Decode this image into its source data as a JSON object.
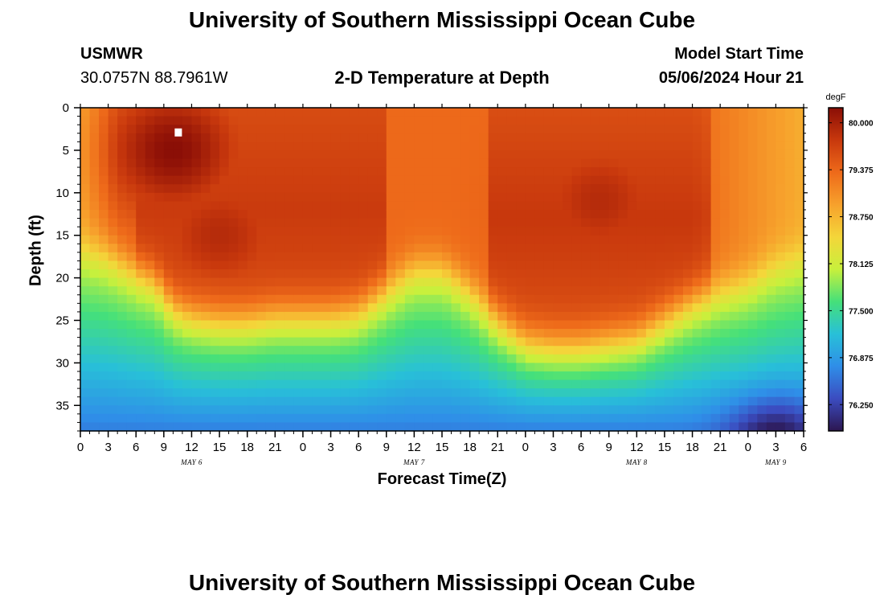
{
  "header": {
    "title": "University of Southern Mississippi Ocean Cube",
    "station": "USMWR",
    "coords": "30.0757N  88.7961W",
    "subtitle": "2-D Temperature at Depth",
    "model_label": "Model Start Time",
    "model_time": "05/06/2024 Hour 21",
    "footer_title": "University of Southern Mississippi Ocean Cube"
  },
  "colors": {
    "scale": [
      "#2c1650",
      "#3b4cc0",
      "#2f8ee8",
      "#28c0d8",
      "#45e07a",
      "#c8f03c",
      "#f4d63a",
      "#f7a12c",
      "#ee6a1a",
      "#c8380d",
      "#8a0e06"
    ]
  },
  "chart_data": {
    "type": "heatmap",
    "title": "2-D Temperature at Depth",
    "xlabel": "Forecast Time(Z)",
    "ylabel": "Depth (ft)",
    "x_hours_range": [
      0,
      78
    ],
    "ylim": [
      0,
      38
    ],
    "y_ticks": [
      0,
      5,
      10,
      15,
      20,
      25,
      30,
      35
    ],
    "x_tick_hours": [
      0,
      3,
      6,
      9,
      12,
      15,
      18,
      21,
      24,
      27,
      30,
      33,
      36,
      39,
      42,
      45,
      48,
      51,
      54,
      57,
      60,
      63,
      66,
      69,
      72,
      75,
      78
    ],
    "x_tick_labels": [
      "0",
      "3",
      "6",
      "9",
      "12",
      "15",
      "18",
      "21",
      "0",
      "3",
      "6",
      "9",
      "12",
      "15",
      "18",
      "21",
      "0",
      "3",
      "6",
      "9",
      "12",
      "15",
      "18",
      "21",
      "0",
      "3",
      "6"
    ],
    "date_labels": [
      {
        "text": "MAY 6",
        "hour": 12
      },
      {
        "text": "MAY 7",
        "hour": 36
      },
      {
        "text": "MAY 8",
        "hour": 60
      },
      {
        "text": "MAY 9",
        "hour": 75
      }
    ],
    "colorbar": {
      "unit": "degF",
      "range": [
        75.9,
        80.2
      ],
      "ticks": [
        "80.000",
        "79.375",
        "78.750",
        "78.125",
        "77.500",
        "76.875",
        "76.250"
      ]
    },
    "thermocline": {
      "hours": [
        0,
        3,
        6,
        8,
        10,
        12,
        15,
        18,
        21,
        24,
        27,
        30,
        33,
        36,
        39,
        42,
        45,
        48,
        51,
        54,
        57,
        60,
        63,
        66,
        69,
        72,
        75,
        78
      ],
      "depth_ft": [
        16,
        17,
        19,
        20,
        23,
        24,
        24.5,
        24.5,
        24,
        24,
        24,
        23.5,
        21,
        18.5,
        18.5,
        21,
        24.5,
        27,
        27.5,
        27.5,
        27,
        26.5,
        24.5,
        22.5,
        21,
        20,
        18,
        17
      ]
    },
    "cold_bottom": {
      "hour": 75,
      "depth_ft": 38,
      "value": 75.9
    },
    "warm_cores": [
      {
        "hour": 10,
        "depth_ft": 5,
        "value": 80.2
      },
      {
        "hour": 15,
        "depth_ft": 15,
        "value": 79.9
      },
      {
        "hour": 56,
        "depth_ft": 11,
        "value": 79.9
      }
    ],
    "marker": {
      "hour": 10,
      "depth_ft": 3
    }
  }
}
